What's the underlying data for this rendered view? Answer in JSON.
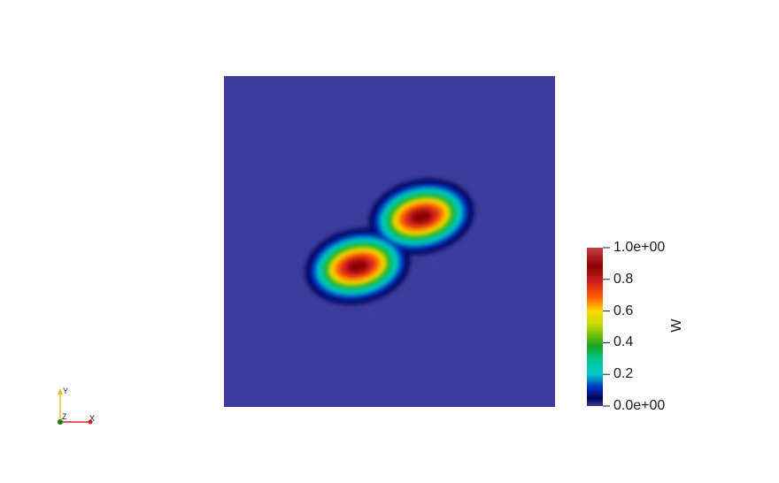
{
  "chart_data": {
    "type": "heatmap",
    "field_name": "W",
    "colormap": "jet-like (blue → cyan → green → yellow → red → dark red)",
    "color_range": [
      0.0,
      1.0
    ],
    "background_value": 0.0,
    "field_features": [
      {
        "name": "peak-upper-right",
        "peak_value": 0.9
      },
      {
        "name": "peak-lower-left",
        "peak_value": 0.9
      }
    ],
    "colorbar": {
      "title": "W",
      "ticks": [
        {
          "value": 1.0,
          "label": "1.0e+00"
        },
        {
          "value": 0.8,
          "label": "0.8"
        },
        {
          "value": 0.6,
          "label": "0.6"
        },
        {
          "value": 0.4,
          "label": "0.4"
        },
        {
          "value": 0.2,
          "label": "0.2"
        },
        {
          "value": 0.0,
          "label": "0.0e+00"
        }
      ],
      "colors": [
        "#3b3c9c",
        "#00005a",
        "#0036c4",
        "#00d0d0",
        "#00b050",
        "#1fa51f",
        "#c8dc00",
        "#ffd700",
        "#ff6600",
        "#d42020",
        "#8b0000",
        "#c24040"
      ]
    },
    "orientation_axes": {
      "labels": {
        "x": "X",
        "y": "Y",
        "z": "Z"
      },
      "colors": {
        "x": "#e02020",
        "y": "#e0c020",
        "z": "#108010"
      }
    }
  }
}
